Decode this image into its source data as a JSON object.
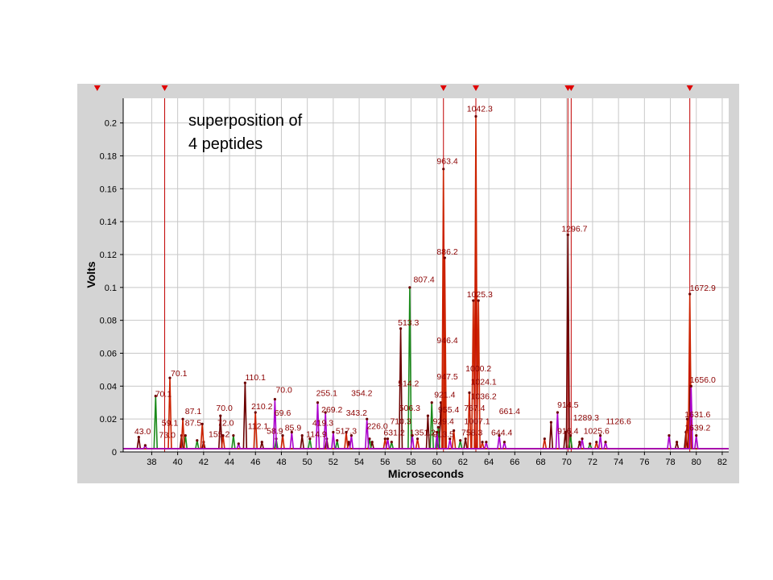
{
  "annotation": "superposition of\n4 peptides",
  "chart_data": {
    "type": "line",
    "xlabel": "Microseconds",
    "ylabel": "Volts",
    "xlim": [
      35.8,
      82.5
    ],
    "ylim": [
      0,
      0.215
    ],
    "x_ticks": [
      38,
      40,
      42,
      44,
      46,
      48,
      50,
      52,
      54,
      56,
      58,
      60,
      62,
      64,
      66,
      68,
      70,
      72,
      74,
      76,
      78,
      80,
      82
    ],
    "y_ticks": [
      0,
      0.02,
      0.04,
      0.06,
      0.08,
      0.1,
      0.12,
      0.14,
      0.16,
      0.18,
      0.2
    ],
    "grid": true,
    "colors": {
      "peptide_a": "#6b0000",
      "peptide_b": "#1a8a1a",
      "peptide_c": "#cc2200",
      "peptide_d": "#aa00cc",
      "marker_lines": "#c00000",
      "peak_labels": "#8b0000",
      "background": "#d4d4d4",
      "plot_area": "#ffffff"
    },
    "marker_lines_x": [
      39.0,
      60.5,
      63.0,
      70.1,
      70.35,
      79.5
    ],
    "top_markers_x": [
      33.8,
      39.0,
      60.5,
      63.0,
      70.1,
      70.35,
      79.5
    ],
    "series": [
      {
        "peaks": [
          [
            37.0,
            0.009
          ],
          [
            40.3,
            0.01
          ],
          [
            42.0,
            0.006
          ],
          [
            43.3,
            0.022
          ],
          [
            45.2,
            0.042
          ],
          [
            46.5,
            0.006
          ],
          [
            49.6,
            0.01
          ],
          [
            51.5,
            0.008
          ],
          [
            53.2,
            0.006
          ],
          [
            55.0,
            0.006
          ],
          [
            57.2,
            0.075
          ],
          [
            59.3,
            0.022
          ],
          [
            60.3,
            0.03
          ],
          [
            62.2,
            0.008
          ],
          [
            68.8,
            0.018
          ],
          [
            69.9,
            0.012
          ],
          [
            70.1,
            0.132
          ],
          [
            71.0,
            0.006
          ],
          [
            78.5,
            0.006
          ],
          [
            79.2,
            0.012
          ],
          [
            79.5,
            0.04
          ]
        ]
      },
      {
        "peaks": [
          [
            38.3,
            0.034
          ],
          [
            40.6,
            0.01
          ],
          [
            41.5,
            0.007
          ],
          [
            44.3,
            0.01
          ],
          [
            47.6,
            0.008
          ],
          [
            50.2,
            0.008
          ],
          [
            52.3,
            0.007
          ],
          [
            54.8,
            0.008
          ],
          [
            56.5,
            0.006
          ],
          [
            57.9,
            0.1
          ],
          [
            59.6,
            0.03
          ],
          [
            60.1,
            0.015
          ],
          [
            61.8,
            0.007
          ],
          [
            70.3,
            0.01
          ],
          [
            71.8,
            0.005
          ]
        ]
      },
      {
        "peaks": [
          [
            39.4,
            0.045
          ],
          [
            40.4,
            0.02
          ],
          [
            41.9,
            0.017
          ],
          [
            43.5,
            0.01
          ],
          [
            46.0,
            0.024
          ],
          [
            48.1,
            0.01
          ],
          [
            53.0,
            0.012
          ],
          [
            56.0,
            0.008
          ],
          [
            58.5,
            0.008
          ],
          [
            60.5,
            0.172
          ],
          [
            60.6,
            0.118
          ],
          [
            61.3,
            0.013
          ],
          [
            62.5,
            0.036
          ],
          [
            62.8,
            0.092
          ],
          [
            63.0,
            0.204
          ],
          [
            63.2,
            0.092
          ],
          [
            63.5,
            0.006
          ],
          [
            68.3,
            0.008
          ],
          [
            72.3,
            0.006
          ],
          [
            79.5,
            0.096
          ],
          [
            79.3,
            0.02
          ]
        ]
      },
      {
        "peaks": [
          [
            37.5,
            0.004
          ],
          [
            44.7,
            0.005
          ],
          [
            47.5,
            0.032
          ],
          [
            48.8,
            0.012
          ],
          [
            50.8,
            0.03
          ],
          [
            51.4,
            0.024
          ],
          [
            52.0,
            0.012
          ],
          [
            53.4,
            0.01
          ],
          [
            54.6,
            0.02
          ],
          [
            56.2,
            0.008
          ],
          [
            58.1,
            0.01
          ],
          [
            60.0,
            0.012
          ],
          [
            61.0,
            0.008
          ],
          [
            63.8,
            0.006
          ],
          [
            64.8,
            0.01
          ],
          [
            65.2,
            0.006
          ],
          [
            69.3,
            0.024
          ],
          [
            71.2,
            0.008
          ],
          [
            72.6,
            0.01
          ],
          [
            73.0,
            0.006
          ],
          [
            77.9,
            0.01
          ],
          [
            79.6,
            0.04
          ],
          [
            80.0,
            0.01
          ]
        ]
      }
    ],
    "peak_labels": [
      {
        "x": 37.3,
        "y": 0.0108,
        "text": "43.0"
      },
      {
        "x": 38.9,
        "y": 0.0335,
        "text": "70.1"
      },
      {
        "x": 40.1,
        "y": 0.046,
        "text": "70.1"
      },
      {
        "x": 39.4,
        "y": 0.016,
        "text": "59.1"
      },
      {
        "x": 39.2,
        "y": 0.0085,
        "text": "73.0"
      },
      {
        "x": 41.2,
        "y": 0.023,
        "text": "87.1"
      },
      {
        "x": 41.2,
        "y": 0.016,
        "text": "87.5"
      },
      {
        "x": 43.6,
        "y": 0.025,
        "text": "70.0"
      },
      {
        "x": 43.7,
        "y": 0.016,
        "text": "72.0"
      },
      {
        "x": 43.2,
        "y": 0.009,
        "text": "155.2"
      },
      {
        "x": 46.0,
        "y": 0.0435,
        "text": "110.1"
      },
      {
        "x": 46.5,
        "y": 0.026,
        "text": "210.2"
      },
      {
        "x": 46.2,
        "y": 0.014,
        "text": "112.1"
      },
      {
        "x": 48.2,
        "y": 0.036,
        "text": "70.0"
      },
      {
        "x": 48.1,
        "y": 0.022,
        "text": "69.6"
      },
      {
        "x": 47.5,
        "y": 0.011,
        "text": "58.9"
      },
      {
        "x": 48.9,
        "y": 0.013,
        "text": "85.9"
      },
      {
        "x": 51.5,
        "y": 0.034,
        "text": "255.1"
      },
      {
        "x": 51.9,
        "y": 0.024,
        "text": "269.2"
      },
      {
        "x": 51.2,
        "y": 0.016,
        "text": "419.3"
      },
      {
        "x": 50.7,
        "y": 0.009,
        "text": "114.9"
      },
      {
        "x": 54.2,
        "y": 0.034,
        "text": "354.2"
      },
      {
        "x": 53.8,
        "y": 0.022,
        "text": "343.2"
      },
      {
        "x": 53.0,
        "y": 0.011,
        "text": "517.3"
      },
      {
        "x": 55.4,
        "y": 0.014,
        "text": "226.0"
      },
      {
        "x": 57.8,
        "y": 0.077,
        "text": "513.3"
      },
      {
        "x": 59.0,
        "y": 0.103,
        "text": "807.4"
      },
      {
        "x": 57.8,
        "y": 0.04,
        "text": "514.2"
      },
      {
        "x": 57.9,
        "y": 0.025,
        "text": "506.3"
      },
      {
        "x": 57.2,
        "y": 0.017,
        "text": "710.3"
      },
      {
        "x": 56.7,
        "y": 0.01,
        "text": "631.2"
      },
      {
        "x": 58.9,
        "y": 0.01,
        "text": "1351.2"
      },
      {
        "x": 60.8,
        "y": 0.175,
        "text": "963.4"
      },
      {
        "x": 60.8,
        "y": 0.12,
        "text": "886.2"
      },
      {
        "x": 60.8,
        "y": 0.066,
        "text": "946.4"
      },
      {
        "x": 60.8,
        "y": 0.044,
        "text": "947.5"
      },
      {
        "x": 60.6,
        "y": 0.033,
        "text": "921.4"
      },
      {
        "x": 60.9,
        "y": 0.024,
        "text": "955.4"
      },
      {
        "x": 60.5,
        "y": 0.017,
        "text": "929.4"
      },
      {
        "x": 60.5,
        "y": 0.009,
        "text": "913.5"
      },
      {
        "x": 63.3,
        "y": 0.207,
        "text": "1042.3"
      },
      {
        "x": 63.3,
        "y": 0.094,
        "text": "1025.3"
      },
      {
        "x": 63.2,
        "y": 0.049,
        "text": "1000.2"
      },
      {
        "x": 63.6,
        "y": 0.041,
        "text": "1024.1"
      },
      {
        "x": 63.6,
        "y": 0.032,
        "text": "1036.2"
      },
      {
        "x": 62.9,
        "y": 0.025,
        "text": "767.4"
      },
      {
        "x": 63.1,
        "y": 0.017,
        "text": "1007.1"
      },
      {
        "x": 62.7,
        "y": 0.01,
        "text": "758.3"
      },
      {
        "x": 65.6,
        "y": 0.023,
        "text": "661.4"
      },
      {
        "x": 65.0,
        "y": 0.01,
        "text": "644.4"
      },
      {
        "x": 70.6,
        "y": 0.134,
        "text": "1296.7"
      },
      {
        "x": 70.1,
        "y": 0.027,
        "text": "914.5"
      },
      {
        "x": 70.1,
        "y": 0.011,
        "text": "916.4"
      },
      {
        "x": 71.5,
        "y": 0.019,
        "text": "1289.3"
      },
      {
        "x": 72.3,
        "y": 0.011,
        "text": "1025.6"
      },
      {
        "x": 74.0,
        "y": 0.017,
        "text": "1126.6"
      },
      {
        "x": 80.5,
        "y": 0.098,
        "text": "1672.9"
      },
      {
        "x": 80.5,
        "y": 0.042,
        "text": "1656.0"
      },
      {
        "x": 80.1,
        "y": 0.021,
        "text": "1631.6"
      },
      {
        "x": 80.1,
        "y": 0.013,
        "text": "1639.2"
      }
    ]
  }
}
